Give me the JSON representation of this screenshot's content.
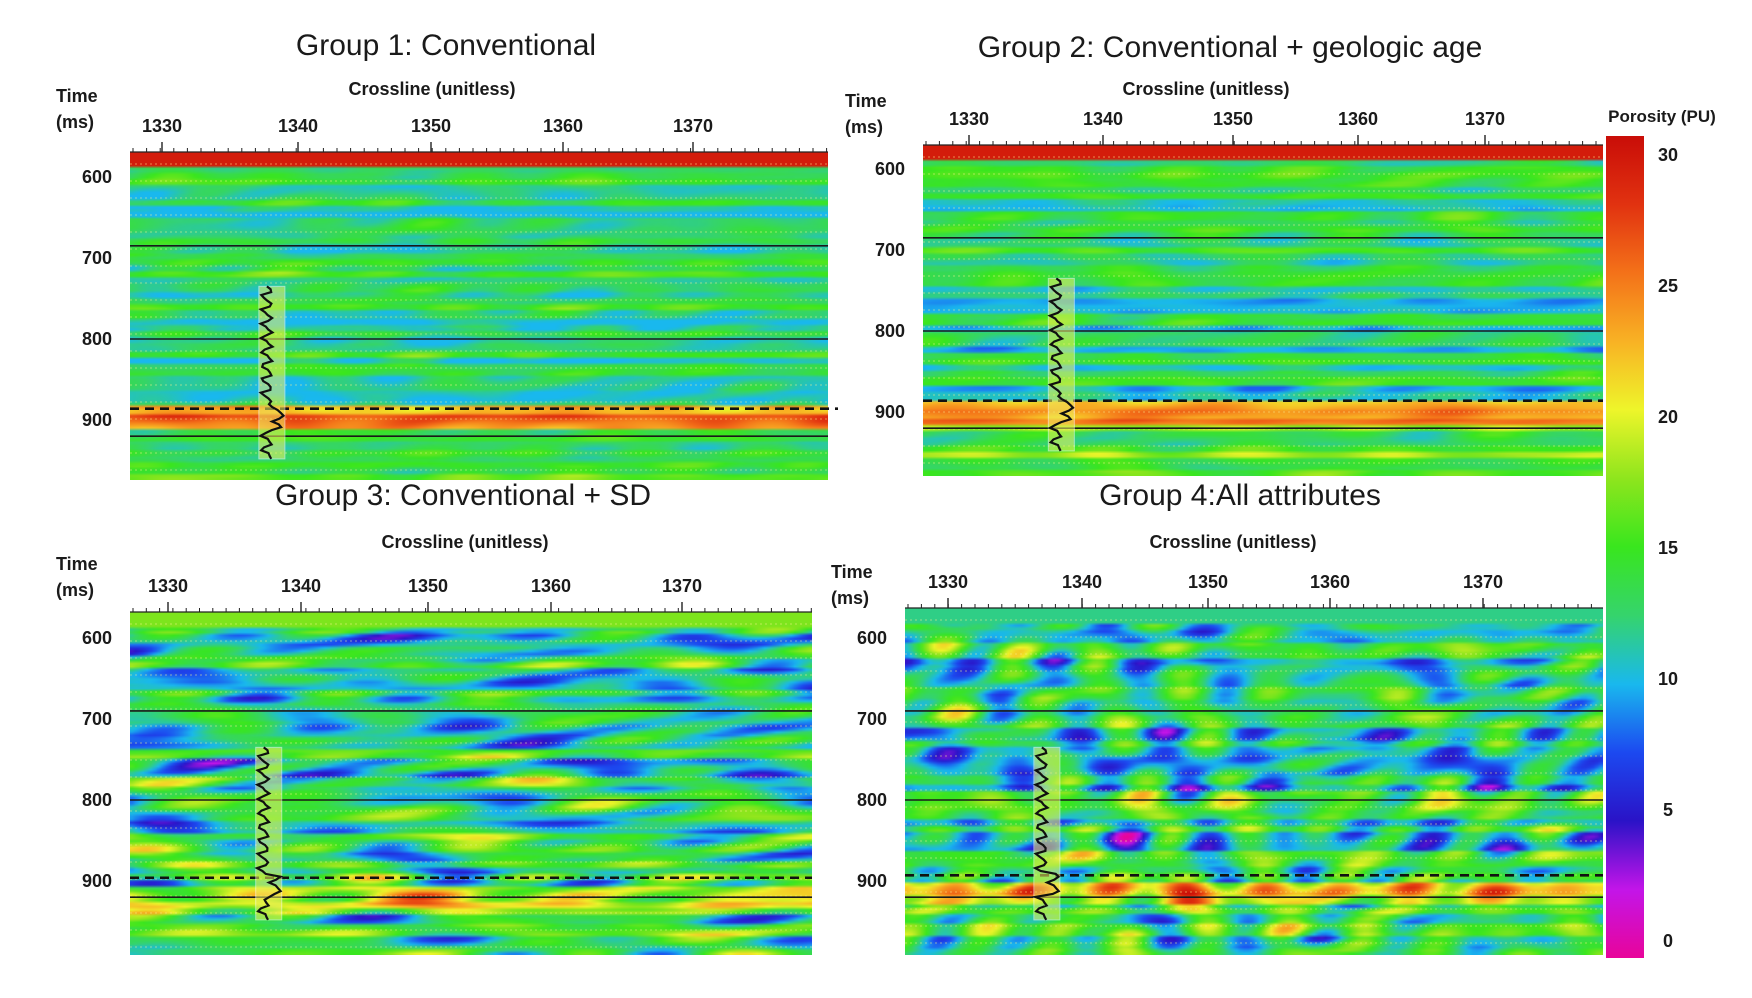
{
  "figure": {
    "colorbar": {
      "title": "Porosity (PU)",
      "ticks": [
        30,
        25,
        20,
        15,
        10,
        5,
        0
      ],
      "range": [
        0,
        30
      ],
      "stops": [
        "#e8049a",
        "#c315e8",
        "#2a13c7",
        "#1c49f0",
        "#19b8ee",
        "#35d46c",
        "#39e61e",
        "#8ee51d",
        "#eef52a",
        "#f8b224",
        "#f47219",
        "#e13210",
        "#c90d08"
      ]
    }
  },
  "chart_data": [
    {
      "type": "heatmap",
      "title": "Group 1: Conventional",
      "xlabel": "Crossline (unitless)",
      "ylabel": [
        "Time",
        "(ms)"
      ],
      "x_ticks": [
        1330,
        1340,
        1350,
        1360,
        1370
      ],
      "y_ticks": [
        600,
        700,
        800,
        900
      ],
      "xlim": [
        1328,
        1379
      ],
      "ylim": [
        575,
        980
      ],
      "well_crossline": 1338,
      "marked_horizon_ms": 886,
      "horizons_ms": [
        685,
        800,
        920
      ],
      "value_range_pu": [
        10,
        30
      ],
      "top_band_pu": 29
    },
    {
      "type": "heatmap",
      "title": "Group 2: Conventional + geologic age",
      "xlabel": "Crossline (unitless)",
      "ylabel": [
        "Time",
        "(ms)"
      ],
      "x_ticks": [
        1330,
        1340,
        1350,
        1360,
        1370
      ],
      "y_ticks": [
        600,
        700,
        800,
        900
      ],
      "xlim": [
        1328,
        1379
      ],
      "ylim": [
        575,
        980
      ],
      "well_crossline": 1338,
      "marked_horizon_ms": 886,
      "horizons_ms": [
        685,
        800,
        920
      ],
      "value_range_pu": [
        8,
        30
      ],
      "top_band_pu": 29
    },
    {
      "type": "heatmap",
      "title": "Group 3: Conventional +  SD",
      "xlabel": "Crossline (unitless)",
      "ylabel": [
        "Time",
        "(ms)"
      ],
      "x_ticks": [
        1330,
        1340,
        1350,
        1360,
        1370
      ],
      "y_ticks": [
        600,
        700,
        800,
        900
      ],
      "xlim": [
        1328,
        1379
      ],
      "ylim": [
        575,
        980
      ],
      "well_crossline": 1338,
      "marked_horizon_ms": 896,
      "horizons_ms": [
        690,
        800,
        920
      ],
      "value_range_pu": [
        0,
        30
      ],
      "top_band_pu": 17
    },
    {
      "type": "heatmap",
      "title": "Group 4:All attributes",
      "xlabel": "Crossline (unitless)",
      "ylabel": [
        "Time",
        "(ms)"
      ],
      "x_ticks": [
        1330,
        1340,
        1350,
        1360,
        1370
      ],
      "y_ticks": [
        600,
        700,
        800,
        900
      ],
      "xlim": [
        1328,
        1379
      ],
      "ylim": [
        575,
        980
      ],
      "well_crossline": 1338,
      "marked_horizon_ms": 893,
      "horizons_ms": [
        690,
        800,
        920
      ],
      "value_range_pu": [
        0,
        30
      ],
      "top_band_pu": 12
    }
  ]
}
